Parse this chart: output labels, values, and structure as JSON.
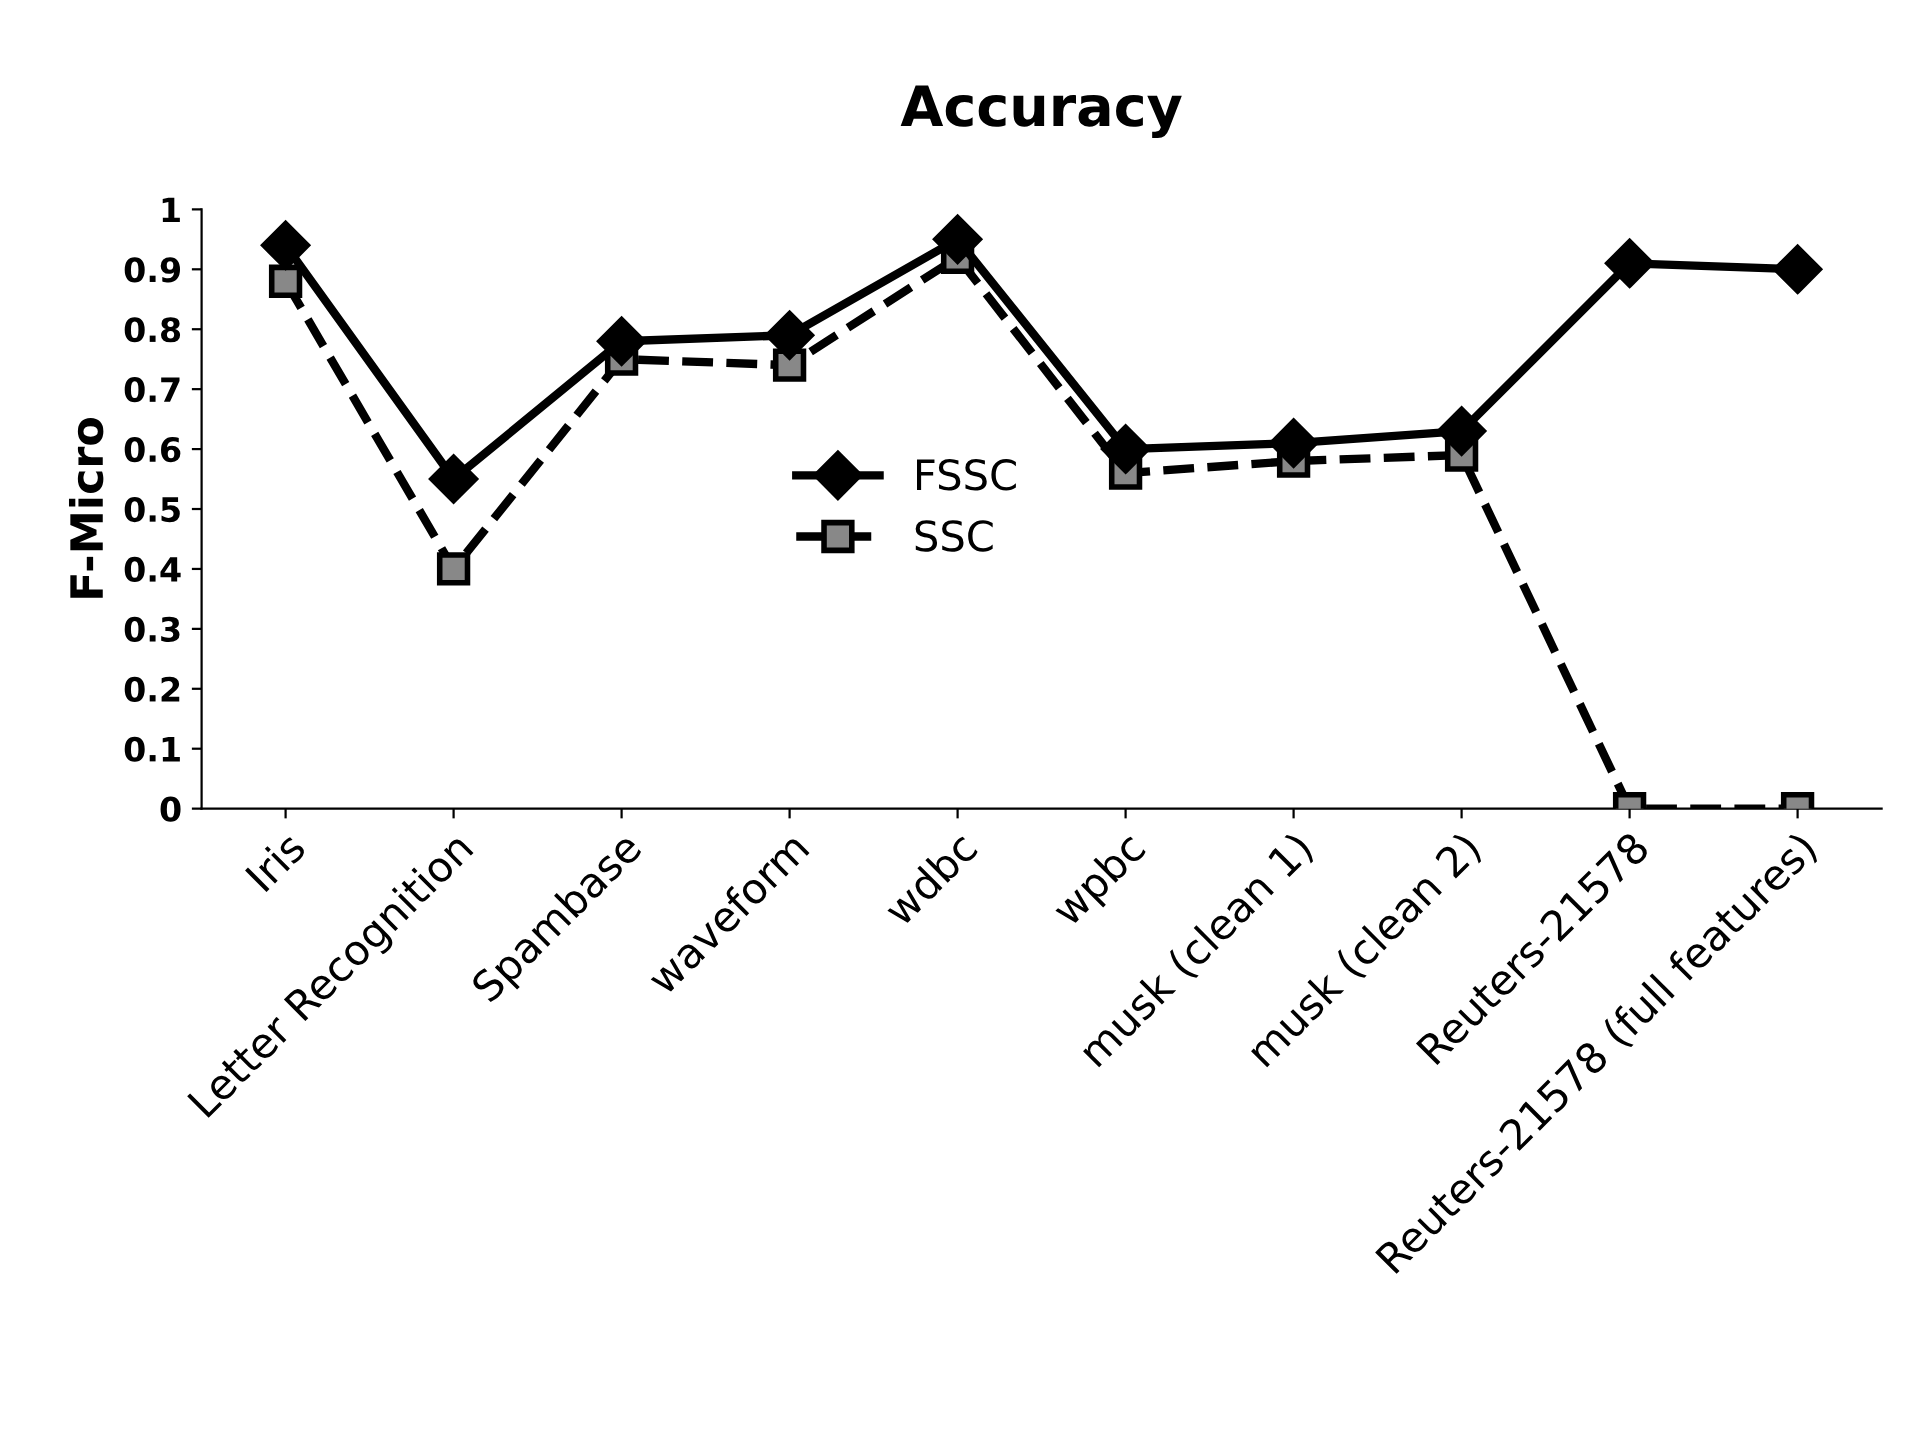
{
  "chart_data": {
    "type": "line",
    "title": "Accuracy",
    "ylabel": "F-Micro",
    "categories": [
      "Iris",
      "Letter Recognition",
      "Spambase",
      "waveform",
      "wdbc",
      "wpbc",
      "musk (clean 1)",
      "musk (clean 2)",
      "Reuters-21578",
      "Reuters-21578 (full features)"
    ],
    "series": [
      {
        "name": "FSSC",
        "color": "#000000",
        "marker": "diamond",
        "line_style": "solid",
        "values": [
          0.94,
          0.55,
          0.78,
          0.79,
          0.95,
          0.6,
          0.61,
          0.63,
          0.91,
          0.9
        ]
      },
      {
        "name": "SSC",
        "color": "#000000",
        "marker": "square",
        "line_style": "dashed",
        "values": [
          0.88,
          0.4,
          0.75,
          0.74,
          0.92,
          0.56,
          0.58,
          0.59,
          0,
          0
        ]
      }
    ],
    "ylim": [
      0,
      1
    ],
    "yticks": [
      0,
      0.1,
      0.2,
      0.3,
      0.4,
      0.5,
      0.6,
      0.7,
      0.8,
      0.9,
      1
    ],
    "grid": false,
    "legend": "center"
  }
}
